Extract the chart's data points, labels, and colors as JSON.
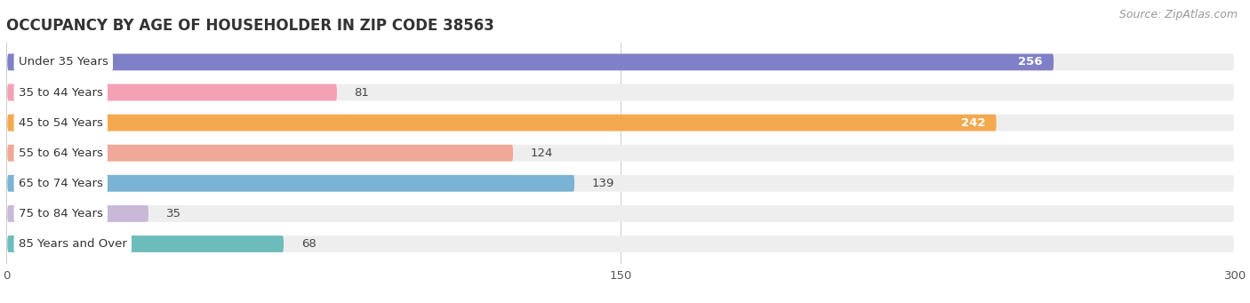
{
  "title": "OCCUPANCY BY AGE OF HOUSEHOLDER IN ZIP CODE 38563",
  "source": "Source: ZipAtlas.com",
  "categories": [
    "Under 35 Years",
    "35 to 44 Years",
    "45 to 54 Years",
    "55 to 64 Years",
    "65 to 74 Years",
    "75 to 84 Years",
    "85 Years and Over"
  ],
  "values": [
    256,
    81,
    242,
    124,
    139,
    35,
    68
  ],
  "bar_colors": [
    "#8080c8",
    "#f4a0b5",
    "#f5a94e",
    "#f0a898",
    "#7ab3d4",
    "#c9b8d8",
    "#6dbcbc"
  ],
  "bar_bg_color": "#eeeeee",
  "xlim": [
    0,
    300
  ],
  "xticks": [
    0,
    150,
    300
  ],
  "title_fontsize": 12,
  "label_fontsize": 9.5,
  "value_fontsize": 9.5,
  "source_fontsize": 9,
  "background_color": "#ffffff",
  "fig_width": 14.06,
  "fig_height": 3.41,
  "bar_height": 0.55,
  "bar_gap": 1.0
}
